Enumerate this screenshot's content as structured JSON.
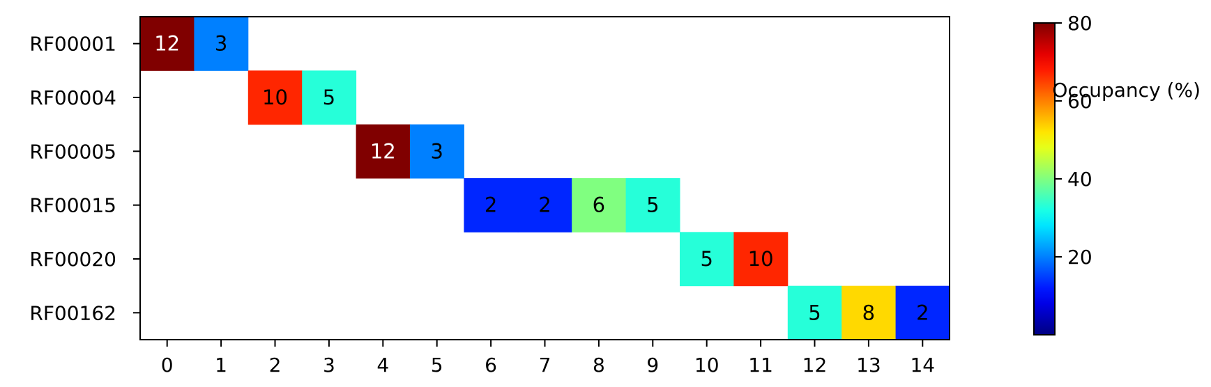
{
  "chart_data": {
    "type": "heatmap",
    "title": "",
    "xlabel": "",
    "ylabel": "",
    "rows": [
      "RF00001",
      "RF00004",
      "RF00005",
      "RF00015",
      "RF00020",
      "RF00162"
    ],
    "columns": [
      "0",
      "1",
      "2",
      "3",
      "4",
      "5",
      "6",
      "7",
      "8",
      "9",
      "10",
      "11",
      "12",
      "13",
      "14"
    ],
    "cells": [
      {
        "row": 0,
        "col": 0,
        "label": "12",
        "occupancy": 80
      },
      {
        "row": 0,
        "col": 1,
        "label": "3",
        "occupancy": 20
      },
      {
        "row": 1,
        "col": 2,
        "label": "10",
        "occupancy": 67
      },
      {
        "row": 1,
        "col": 3,
        "label": "5",
        "occupancy": 33
      },
      {
        "row": 2,
        "col": 4,
        "label": "12",
        "occupancy": 80
      },
      {
        "row": 2,
        "col": 5,
        "label": "3",
        "occupancy": 20
      },
      {
        "row": 3,
        "col": 6,
        "label": "2",
        "occupancy": 13
      },
      {
        "row": 3,
        "col": 7,
        "label": "2",
        "occupancy": 13
      },
      {
        "row": 3,
        "col": 8,
        "label": "6",
        "occupancy": 40
      },
      {
        "row": 3,
        "col": 9,
        "label": "5",
        "occupancy": 33
      },
      {
        "row": 4,
        "col": 10,
        "label": "5",
        "occupancy": 33
      },
      {
        "row": 4,
        "col": 11,
        "label": "10",
        "occupancy": 67
      },
      {
        "row": 5,
        "col": 12,
        "label": "5",
        "occupancy": 33
      },
      {
        "row": 5,
        "col": 13,
        "label": "8",
        "occupancy": 53
      },
      {
        "row": 5,
        "col": 14,
        "label": "2",
        "occupancy": 13
      }
    ],
    "colorbar": {
      "label": "Occupancy (%)",
      "colormap": "jet",
      "range": [
        0,
        80
      ],
      "ticks": [
        20,
        40,
        60,
        80
      ]
    },
    "grid": false
  }
}
